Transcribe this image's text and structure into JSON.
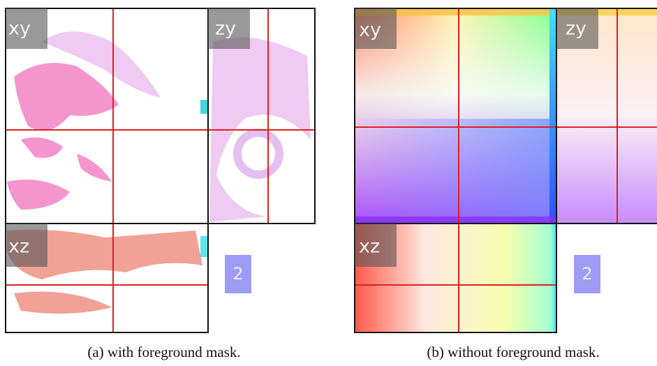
{
  "panels": [
    {
      "xy_label": "xy",
      "zy_label": "zy",
      "xz_label": "xz",
      "badge": "2",
      "caption": "(a) with foreground mask."
    },
    {
      "xy_label": "xy",
      "zy_label": "zy",
      "xz_label": "xz",
      "badge": "2",
      "caption": "(b) without foreground mask."
    }
  ]
}
